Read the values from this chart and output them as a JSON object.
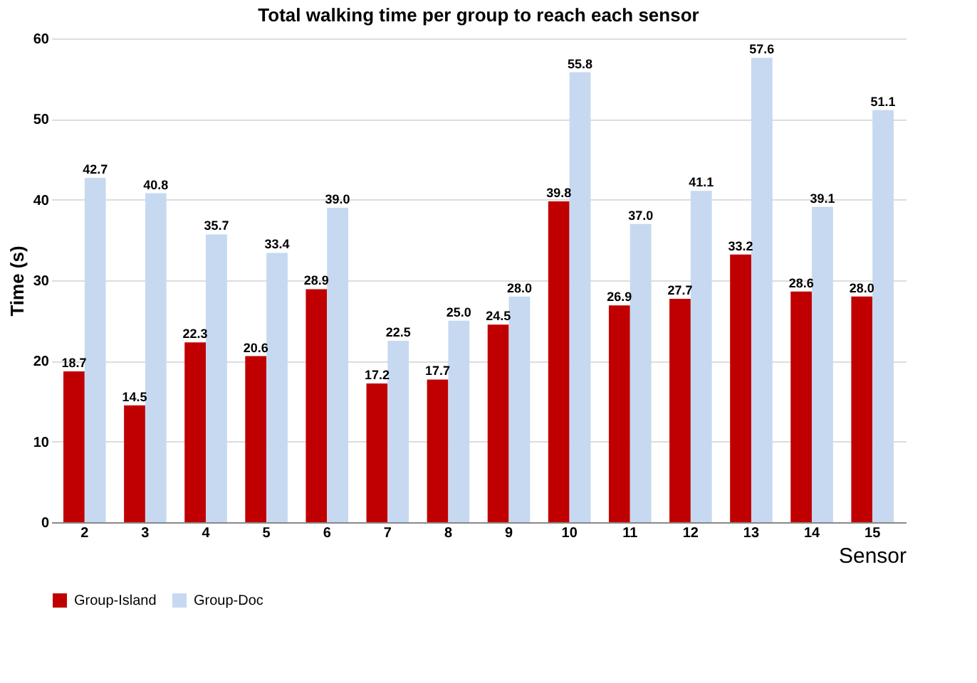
{
  "chart_data": {
    "type": "bar",
    "title": "Total walking time per group to reach each sensor",
    "xlabel": "Sensor",
    "ylabel": "Time (s)",
    "categories": [
      "2",
      "3",
      "4",
      "5",
      "6",
      "7",
      "8",
      "9",
      "10",
      "11",
      "12",
      "13",
      "14",
      "15"
    ],
    "series": [
      {
        "name": "Group-Island",
        "color": "#c00000",
        "values": [
          18.7,
          14.5,
          22.3,
          20.6,
          28.9,
          17.2,
          17.7,
          24.5,
          39.8,
          26.9,
          27.7,
          33.2,
          28.6,
          28.0
        ],
        "value_labels": [
          "18.7",
          "14.5",
          "22.3",
          "20.6",
          "28.9",
          "17.2",
          "17.7",
          "24.5",
          "39.8",
          "26.9",
          "27.7",
          "33.2",
          "28.6",
          "28.0"
        ]
      },
      {
        "name": "Group-Doc",
        "color": "#c6d9f1",
        "values": [
          42.7,
          40.8,
          35.7,
          33.4,
          39.0,
          22.5,
          25.0,
          28.0,
          55.8,
          37.0,
          41.1,
          57.6,
          39.1,
          51.1
        ],
        "value_labels": [
          "42.7",
          "40.8",
          "35.7",
          "33.4",
          "39.0",
          "22.5",
          "25.0",
          "28.0",
          "55.8",
          "37.0",
          "41.1",
          "57.6",
          "39.1",
          "51.1"
        ]
      }
    ],
    "ylim": [
      0,
      60
    ],
    "yticks": [
      0,
      10,
      20,
      30,
      40,
      50,
      60
    ],
    "grid": "y",
    "legend": "bottom"
  }
}
